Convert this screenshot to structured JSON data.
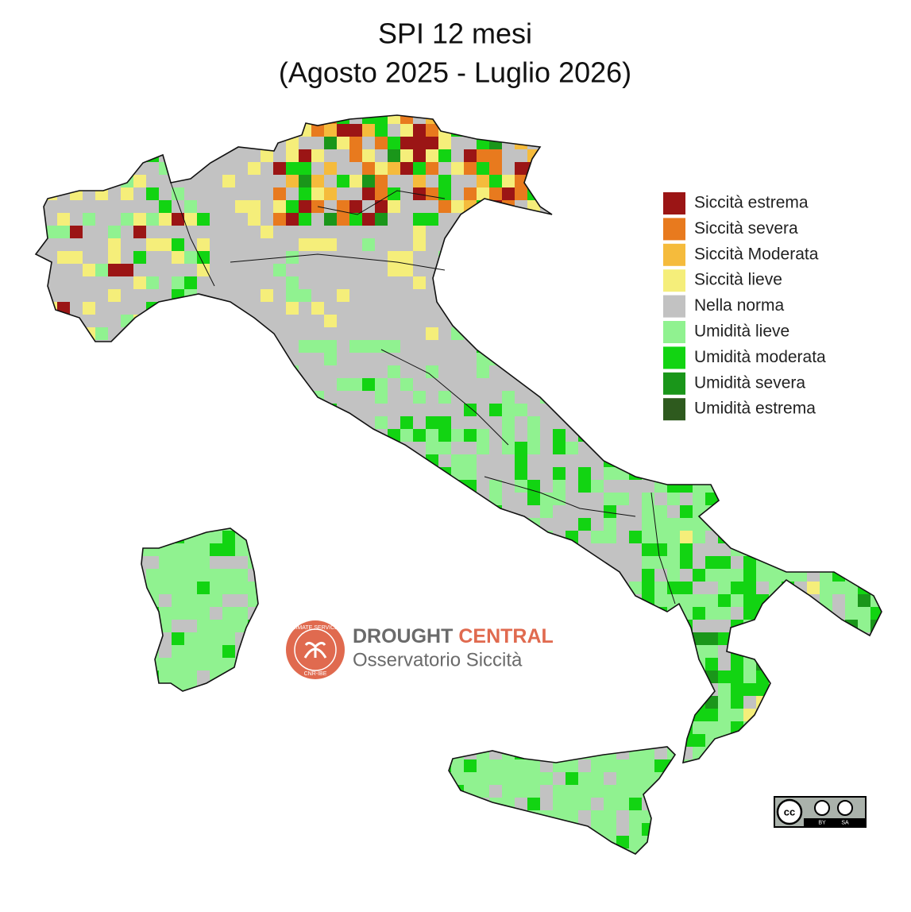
{
  "title": {
    "line1": "SPI 12 mesi",
    "line2": "(Agosto 2025 - Luglio 2026)"
  },
  "legend": {
    "items": [
      {
        "label": "Siccità estrema",
        "color": "#9b1515"
      },
      {
        "label": "Siccità severa",
        "color": "#e87a1e"
      },
      {
        "label": "Siccità Moderata",
        "color": "#f5bb3c"
      },
      {
        "label": "Siccità lieve",
        "color": "#f5ee7a"
      },
      {
        "label": "Nella norma",
        "color": "#c2c2c2"
      },
      {
        "label": "Umidità lieve",
        "color": "#90f290"
      },
      {
        "label": "Umidità moderata",
        "color": "#12d412"
      },
      {
        "label": "Umidità severa",
        "color": "#1a961a"
      },
      {
        "label": "Umidità estrema",
        "color": "#2e5a1e"
      }
    ]
  },
  "logo": {
    "word1": "DROUGHT",
    "word2": "CENTRAL",
    "subtitle": "Osservatorio Siccità",
    "ring_top": "CLIMATE SERVICES",
    "ring_bottom": "CNR-IBE"
  },
  "license": {
    "cc": "cc",
    "by": "BY",
    "sa": "SA"
  }
}
